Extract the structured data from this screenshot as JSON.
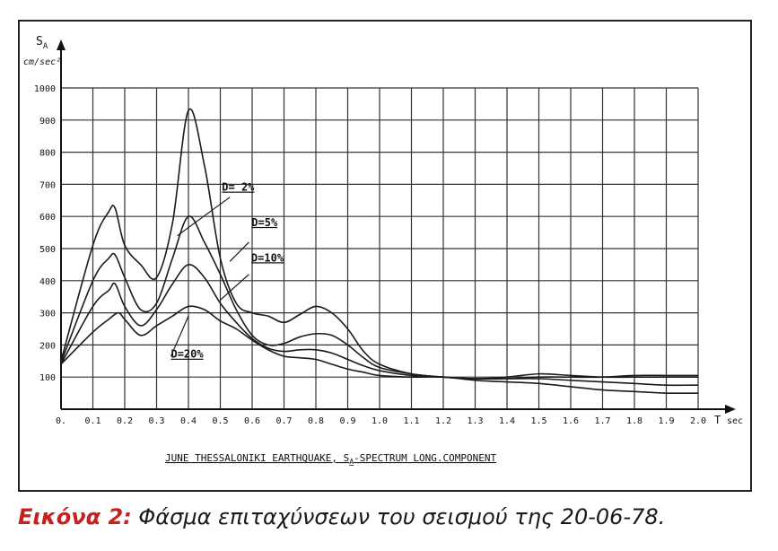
{
  "chart_data": {
    "type": "line",
    "title": "JUNE THESSALONIKI EARTHQUAKE, S",
    "title_sub": "A",
    "title_rest": "-SPECTRUM LONG.COMPONENT",
    "ylabel": "S",
    "ylabel_sub": "A",
    "yunit": "cm/sec²",
    "xlabel": "T",
    "xunit": "sec",
    "xlim": [
      0,
      2.0
    ],
    "ylim": [
      0,
      1000
    ],
    "grid": true,
    "x_ticks": [
      "0.",
      "0.1",
      "0.2",
      "0.3",
      "0.4",
      "0.5",
      "0.6",
      "0.7",
      "0.8",
      "0.9",
      "1.0",
      "1.1",
      "1.2",
      "1.3",
      "1.4",
      "1.5",
      "1.6",
      "1.7",
      "1.8",
      "1.9",
      "2.0"
    ],
    "y_ticks": [
      "100",
      "200",
      "300",
      "400",
      "500",
      "600",
      "700",
      "800",
      "900",
      "1000"
    ],
    "series": [
      {
        "name": "D= 2%",
        "points": [
          [
            0,
            150
          ],
          [
            0.1,
            510
          ],
          [
            0.15,
            615
          ],
          [
            0.17,
            625
          ],
          [
            0.2,
            510
          ],
          [
            0.25,
            450
          ],
          [
            0.3,
            410
          ],
          [
            0.35,
            580
          ],
          [
            0.4,
            930
          ],
          [
            0.45,
            760
          ],
          [
            0.5,
            470
          ],
          [
            0.55,
            330
          ],
          [
            0.6,
            300
          ],
          [
            0.65,
            290
          ],
          [
            0.7,
            270
          ],
          [
            0.75,
            295
          ],
          [
            0.8,
            320
          ],
          [
            0.85,
            300
          ],
          [
            0.9,
            250
          ],
          [
            0.95,
            180
          ],
          [
            1.0,
            140
          ],
          [
            1.1,
            110
          ],
          [
            1.2,
            100
          ],
          [
            1.3,
            95
          ],
          [
            1.4,
            95
          ],
          [
            1.5,
            100
          ],
          [
            1.6,
            100
          ],
          [
            1.7,
            100
          ],
          [
            1.8,
            105
          ],
          [
            1.9,
            105
          ],
          [
            2.0,
            105
          ]
        ]
      },
      {
        "name": "D=5%",
        "points": [
          [
            0,
            145
          ],
          [
            0.1,
            400
          ],
          [
            0.15,
            470
          ],
          [
            0.17,
            480
          ],
          [
            0.2,
            410
          ],
          [
            0.25,
            310
          ],
          [
            0.3,
            330
          ],
          [
            0.35,
            470
          ],
          [
            0.4,
            600
          ],
          [
            0.45,
            520
          ],
          [
            0.5,
            420
          ],
          [
            0.55,
            310
          ],
          [
            0.6,
            230
          ],
          [
            0.65,
            200
          ],
          [
            0.7,
            205
          ],
          [
            0.75,
            225
          ],
          [
            0.8,
            235
          ],
          [
            0.85,
            230
          ],
          [
            0.9,
            200
          ],
          [
            0.95,
            160
          ],
          [
            1.0,
            130
          ],
          [
            1.1,
            110
          ],
          [
            1.2,
            100
          ],
          [
            1.3,
            95
          ],
          [
            1.4,
            100
          ],
          [
            1.5,
            110
          ],
          [
            1.6,
            105
          ],
          [
            1.7,
            100
          ],
          [
            1.8,
            100
          ],
          [
            1.9,
            100
          ],
          [
            2.0,
            100
          ]
        ]
      },
      {
        "name": "D=10%",
        "points": [
          [
            0,
            140
          ],
          [
            0.1,
            320
          ],
          [
            0.15,
            370
          ],
          [
            0.17,
            390
          ],
          [
            0.2,
            320
          ],
          [
            0.25,
            260
          ],
          [
            0.3,
            310
          ],
          [
            0.35,
            390
          ],
          [
            0.4,
            450
          ],
          [
            0.45,
            410
          ],
          [
            0.5,
            330
          ],
          [
            0.55,
            270
          ],
          [
            0.6,
            220
          ],
          [
            0.65,
            190
          ],
          [
            0.7,
            180
          ],
          [
            0.75,
            185
          ],
          [
            0.8,
            185
          ],
          [
            0.85,
            175
          ],
          [
            0.9,
            155
          ],
          [
            0.95,
            135
          ],
          [
            1.0,
            120
          ],
          [
            1.1,
            105
          ],
          [
            1.2,
            100
          ],
          [
            1.3,
            95
          ],
          [
            1.4,
            95
          ],
          [
            1.5,
            95
          ],
          [
            1.6,
            90
          ],
          [
            1.7,
            85
          ],
          [
            1.8,
            80
          ],
          [
            1.9,
            75
          ],
          [
            2.0,
            75
          ]
        ]
      },
      {
        "name": "D=20%",
        "points": [
          [
            0,
            140
          ],
          [
            0.1,
            240
          ],
          [
            0.15,
            280
          ],
          [
            0.18,
            300
          ],
          [
            0.2,
            280
          ],
          [
            0.25,
            230
          ],
          [
            0.3,
            260
          ],
          [
            0.35,
            290
          ],
          [
            0.4,
            320
          ],
          [
            0.45,
            310
          ],
          [
            0.5,
            275
          ],
          [
            0.55,
            250
          ],
          [
            0.6,
            215
          ],
          [
            0.65,
            185
          ],
          [
            0.7,
            165
          ],
          [
            0.75,
            160
          ],
          [
            0.8,
            155
          ],
          [
            0.85,
            140
          ],
          [
            0.9,
            125
          ],
          [
            0.95,
            115
          ],
          [
            1.0,
            105
          ],
          [
            1.1,
            100
          ],
          [
            1.2,
            100
          ],
          [
            1.3,
            90
          ],
          [
            1.4,
            85
          ],
          [
            1.5,
            80
          ],
          [
            1.6,
            70
          ],
          [
            1.7,
            60
          ],
          [
            1.8,
            55
          ],
          [
            1.9,
            50
          ],
          [
            2.0,
            50
          ]
        ]
      }
    ],
    "annotations": [
      "D= 2%",
      "D=5%",
      "D=10%",
      "D=20%"
    ]
  },
  "caption": {
    "lead": "Εικόνα 2:",
    "text": " Φάσμα επιταχύνσεων του σεισμού της 20-06-78."
  }
}
